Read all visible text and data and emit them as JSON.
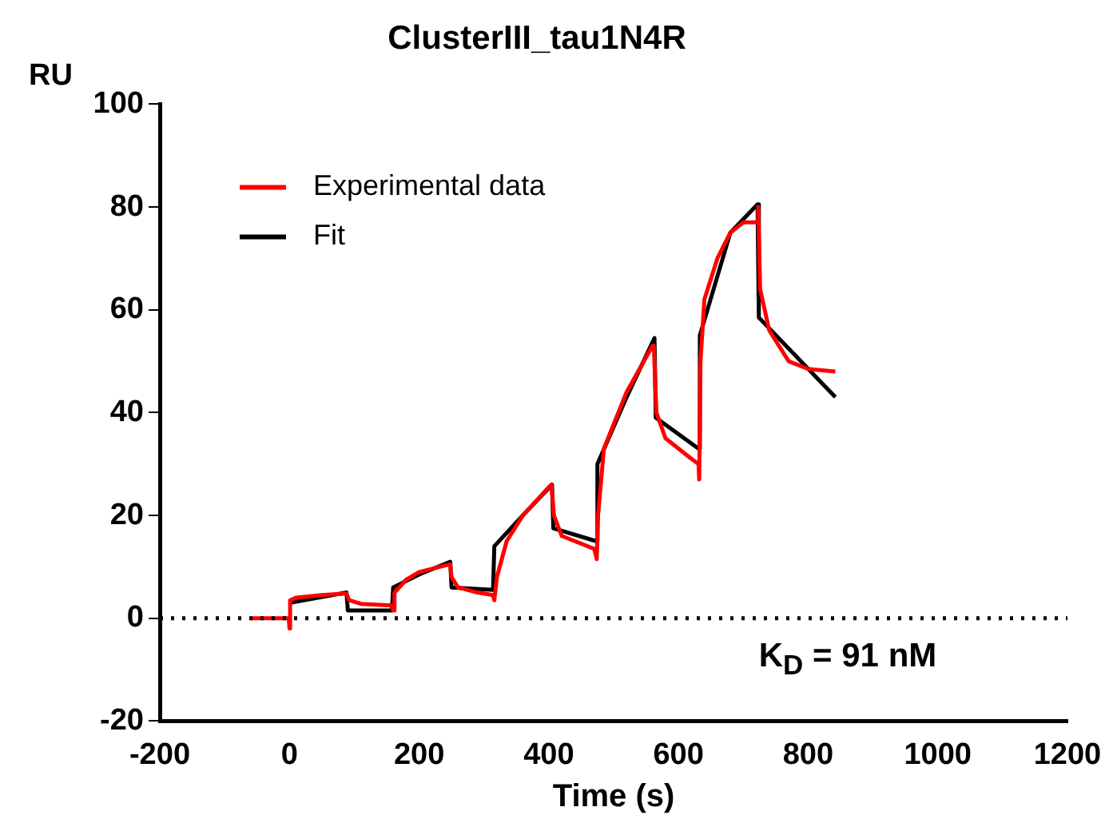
{
  "chart_data": {
    "type": "line",
    "title": "ClusterIII_tau1N4R",
    "xlabel": "Time (s)",
    "ylabel": "RU",
    "xlim": [
      -200,
      1200
    ],
    "xticks": [
      -200,
      0,
      200,
      400,
      600,
      800,
      1000,
      1200
    ],
    "ylim": [
      -20,
      100
    ],
    "yticks": [
      -20,
      0,
      20,
      40,
      60,
      80,
      100
    ],
    "grid": false,
    "legend": "top left",
    "marker": "none",
    "line_style": "solid",
    "series": [
      {
        "name": "Experimental data",
        "color": "#ff0000",
        "x": [
          -60,
          -1,
          0,
          1,
          10,
          50,
          88,
          92,
          110,
          158,
          160,
          162,
          180,
          200,
          248,
          250,
          260,
          290,
          314,
          316,
          320,
          335,
          360,
          400,
          404,
          408,
          420,
          470,
          474,
          476,
          485,
          520,
          560,
          562,
          566,
          580,
          620,
          631,
          632,
          634,
          640,
          660,
          680,
          700,
          722,
          723,
          726,
          740,
          770,
          800,
          842
        ],
        "values": [
          0,
          0,
          -2,
          3.5,
          4,
          4.5,
          4.8,
          3.5,
          2.8,
          2.5,
          1.5,
          5,
          7.5,
          9,
          10.5,
          8,
          6,
          5,
          4.5,
          3.5,
          8,
          15,
          20,
          25.5,
          26,
          20,
          16,
          13.5,
          11.5,
          20,
          33,
          44,
          53,
          53,
          40,
          35,
          31,
          30,
          27,
          50,
          62,
          70,
          75,
          77,
          77,
          80,
          64,
          56,
          50,
          48.5,
          48
        ]
      },
      {
        "name": "Fit",
        "color": "#000000",
        "x": [
          0,
          88,
          90,
          158,
          160,
          200,
          248,
          250,
          314,
          316,
          360,
          405,
          407,
          473,
          475,
          520,
          563,
          565,
          631,
          633,
          680,
          722,
          724,
          842
        ],
        "values": [
          3,
          5,
          1.5,
          1.5,
          6,
          8.5,
          11,
          6,
          5.5,
          14,
          20,
          26,
          17.5,
          15,
          30,
          43,
          54.5,
          39,
          33,
          55,
          75,
          80.5,
          58.5,
          43
        ]
      }
    ],
    "ref_lines": [
      {
        "axis": "y",
        "value": 0,
        "line_style": "dotted",
        "color": "#000000"
      }
    ],
    "annotations": [
      "K$_{D}$ = 91 nM"
    ]
  }
}
